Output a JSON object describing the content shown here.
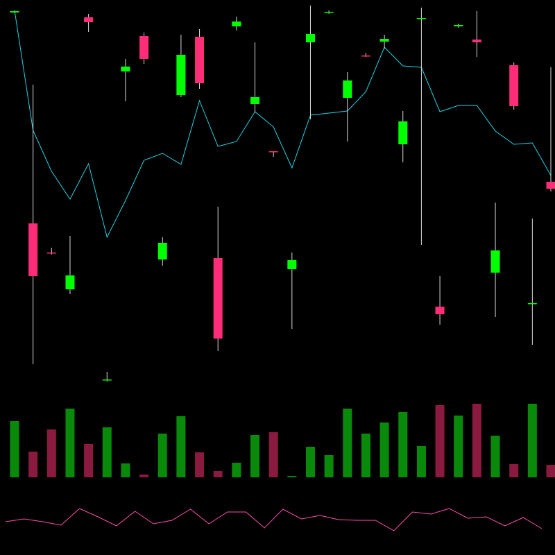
{
  "chart_data": {
    "type": "candlestick",
    "up_color": "#00ff00",
    "down_color": "#ff2d78",
    "wick_color": "#dddddd",
    "ylim": [
      0,
      530
    ],
    "open": [
      512,
      208,
      166,
      113,
      505,
      -18,
      427,
      478,
      156,
      393,
      477,
      158,
      492,
      380,
      312,
      142,
      469,
      512,
      389,
      450,
      470,
      322,
      503,
      88,
      492,
      473,
      137,
      436,
      92,
      268
    ],
    "high": [
      515,
      408,
      173,
      190,
      510,
      -6,
      445,
      483,
      188,
      480,
      488,
      232,
      506,
      469,
      312,
      166,
      522,
      515,
      426,
      454,
      480,
      370,
      519,
      132,
      496,
      514,
      238,
      440,
      215,
      433
    ],
    "low": [
      511,
      5,
      163,
      106,
      484,
      -20,
      384,
      438,
      147,
      390,
      402,
      24,
      486,
      368,
      304,
      56,
      358,
      510,
      326,
      448,
      460,
      296,
      177,
      62,
      490,
      448,
      73,
      372,
      33,
      254
    ],
    "close": [
      514,
      132,
      165,
      133,
      498,
      -17,
      434,
      445,
      180,
      451,
      410,
      42,
      499,
      390,
      311,
      155,
      481,
      513,
      414,
      449,
      474,
      355,
      504,
      77,
      494,
      469,
      169,
      377,
      93,
      258
    ],
    "ma": {
      "color": "#22d3e6",
      "values": [
        515,
        342,
        283,
        243,
        294,
        188,
        241,
        299,
        309,
        293,
        385,
        319,
        326,
        369,
        347,
        288,
        364,
        367,
        370,
        398,
        462,
        435,
        433,
        369,
        378,
        378,
        341,
        322,
        324,
        277
      ]
    },
    "volume_lim": [
      0,
      110
    ],
    "volume": [
      81,
      37,
      69,
      99,
      48,
      72,
      20,
      4,
      63,
      88,
      36,
      9,
      21,
      61,
      65,
      2,
      44,
      32,
      99,
      63,
      79,
      94,
      45,
      104,
      89,
      106,
      60,
      19,
      106,
      18
    ],
    "volume_colors": [
      "#0a8a0a",
      "#8a1a40",
      "#8a1a40",
      "#0a8a0a",
      "#8a1a40",
      "#0a8a0a",
      "#0a8a0a",
      "#8a1a40",
      "#0a8a0a",
      "#0a8a0a",
      "#8a1a40",
      "#8a1a40",
      "#0a8a0a",
      "#0a8a0a",
      "#8a1a40",
      "#0a8a0a",
      "#0a8a0a",
      "#0a8a0a",
      "#0a8a0a",
      "#0a8a0a",
      "#0a8a0a",
      "#0a8a0a",
      "#0a8a0a",
      "#8a1a40",
      "#0a8a0a",
      "#8a1a40",
      "#0a8a0a",
      "#8a1a40",
      "#0a8a0a",
      "#8a1a40"
    ],
    "oscillator_lim": [
      0,
      100
    ],
    "oscillator": {
      "color": "#ff4fb0",
      "values": [
        48,
        52,
        48,
        43,
        67,
        55,
        42,
        63,
        45,
        50,
        66,
        45,
        62,
        62,
        39,
        66,
        52,
        57,
        51,
        50,
        50,
        35,
        62,
        59,
        67,
        53,
        55,
        42,
        54,
        38
      ]
    }
  }
}
